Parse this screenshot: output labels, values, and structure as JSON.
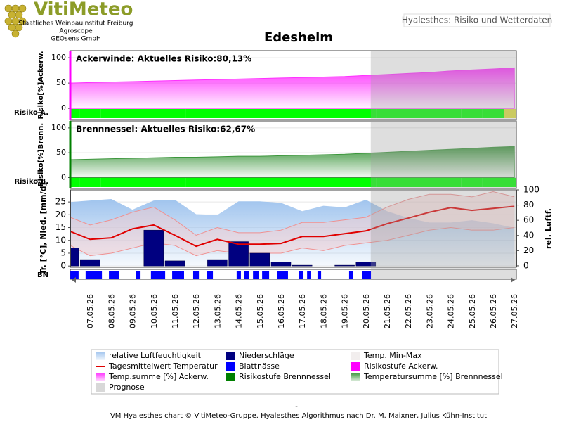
{
  "header": {
    "logo": "VitiMeteo",
    "lines": [
      "Staatliches Weinbauinstitut Freiburg",
      "Agroscope",
      "GEOsens GmbH"
    ],
    "tab": "Hyalesthes: Risiko und Wetterdaten",
    "title": "Edesheim"
  },
  "chart_data": [
    {
      "type": "area",
      "title": "Ackerwinde: Aktuelles Risiko:80,13%",
      "y_label": "Risiko[%]Ackerw.",
      "risk_label": "Risiko A.",
      "ylim": [
        -22,
        114
      ],
      "yticks": [
        0,
        50,
        100
      ],
      "axis_color": "#ff00ff",
      "color": "#ff30ff",
      "values": [
        50,
        51,
        52,
        53,
        54,
        55,
        56,
        57,
        58,
        59,
        60,
        61,
        62,
        63,
        65,
        67,
        69,
        71,
        74,
        76,
        78,
        80.13
      ],
      "risk_levels": [
        1,
        1,
        1,
        1,
        1,
        1,
        1,
        1,
        1,
        1,
        1,
        1,
        1,
        1,
        1,
        1,
        1,
        1,
        1,
        1,
        1,
        2
      ],
      "level_colors": [
        "#00ff00",
        "#e0e040"
      ],
      "grid": true
    },
    {
      "type": "area",
      "title": "Brennnessel: Aktuelles Risiko:62,67%",
      "y_label": "Risiko[%]Brenn.",
      "risk_label": "Risiko B.",
      "ylim": [
        -22,
        114
      ],
      "yticks": [
        0,
        50,
        100
      ],
      "axis_color": "#008000",
      "color": "#3c963c",
      "values": [
        36,
        37,
        38,
        39,
        40,
        41,
        41,
        42,
        43,
        43,
        44,
        45,
        46,
        47,
        49,
        51,
        53,
        55,
        57,
        59,
        61,
        62.67
      ],
      "risk_levels": [
        1,
        1,
        1,
        1,
        1,
        1,
        1,
        1,
        1,
        1,
        1,
        1,
        1,
        1,
        1,
        1,
        1,
        1,
        1,
        1,
        1,
        1
      ],
      "level_colors": [
        "#00ff00",
        "#e0e040"
      ],
      "grid": true
    },
    {
      "type": "weather",
      "y_label": "Tr. [°C], Nied. [mm/d]",
      "y2_label": "rel. Luftf.",
      "categories": [
        null,
        "07.05.26",
        "08.05.26",
        "09.05.26",
        "10.05.26",
        "11.05.26",
        "12.05.26",
        "13.05.26",
        "14.05.26",
        "15.05.26",
        "16.05.26",
        "17.05.26",
        "18.05.26",
        "19.05.26",
        "20.05.26",
        "21.05.26",
        "22.05.26",
        "23.05.26",
        "24.05.26",
        "25.05.26",
        "26.05.26",
        "27.05.26"
      ],
      "ylim": [
        -0.5,
        29.7
      ],
      "yticks": [
        0,
        5,
        10,
        15,
        20,
        25
      ],
      "y2lim": [
        -1.9,
        100
      ],
      "y2ticks": [
        0,
        20,
        40,
        60,
        80,
        100
      ],
      "forecast_start": 14,
      "forecast_color": "#a0a0a0",
      "grid": true,
      "humidity": {
        "axis": "y2",
        "color": "#a0c4ee",
        "values": [
          84,
          86,
          88,
          74,
          86,
          87,
          68,
          67,
          85,
          85,
          83,
          72,
          79,
          77,
          87,
          72,
          63,
          57,
          57,
          60,
          56,
          50
        ]
      },
      "precipitation": {
        "color": "#000080",
        "values": [
          7,
          2.5,
          0,
          0,
          14,
          2,
          0,
          2.5,
          9.5,
          5,
          1.5,
          0.3,
          0,
          0.3,
          1.5,
          0,
          0,
          0,
          0,
          0,
          0,
          0
        ]
      },
      "temp_range": {
        "color": "#f8caca",
        "edge": "#f09090",
        "low": [
          8,
          4,
          5,
          7,
          9,
          8,
          4,
          6,
          5,
          5,
          5,
          7,
          6,
          8,
          9,
          10,
          12,
          14,
          15,
          14,
          14,
          15
        ],
        "high": [
          19,
          16,
          18,
          21,
          23,
          18,
          12,
          15,
          13,
          13,
          14,
          17,
          17,
          18,
          19,
          23,
          26,
          28,
          28,
          27,
          29,
          27
        ]
      },
      "temperature": {
        "color": "#e00000",
        "values": [
          13.5,
          10.4,
          11,
          14.5,
          16,
          12,
          7.7,
          10.4,
          8.5,
          8.5,
          8.8,
          11.5,
          11.5,
          12.6,
          13.7,
          16.5,
          18.7,
          21,
          22.8,
          21.7,
          22.5,
          23.3
        ]
      },
      "leaf_wetness": {
        "label": "BN",
        "color": "#0000ff",
        "intervals": [
          [
            0.07,
            0.46
          ],
          [
            0.79,
            1.56
          ],
          [
            1.89,
            2.38
          ],
          [
            3.15,
            3.38
          ],
          [
            3.87,
            4.54
          ],
          [
            4.87,
            5.43
          ],
          [
            5.86,
            6.13
          ],
          [
            6.52,
            6.79
          ],
          [
            7.91,
            8.11
          ],
          [
            8.25,
            8.51
          ],
          [
            8.68,
            8.94
          ],
          [
            9.11,
            9.44
          ],
          [
            9.83,
            10.33
          ],
          [
            10.83,
            11.06
          ],
          [
            11.23,
            11.39
          ],
          [
            11.72,
            11.89
          ],
          [
            13.21,
            13.38
          ],
          [
            13.81,
            14.24
          ]
        ]
      }
    }
  ],
  "legend": [
    {
      "name": "relative Luftfeuchtigkeit",
      "color": "#a0c4ee",
      "kind": "gradient"
    },
    {
      "name": "Niederschläge",
      "color": "#000080",
      "kind": "fill"
    },
    {
      "name": "Temp. Min-Max",
      "color": "#f2eeee",
      "kind": "fill"
    },
    {
      "name": "Tagesmittelwert Temperatur",
      "color": "#e00000",
      "kind": "line"
    },
    {
      "name": "Blattnässe",
      "color": "#0000ff",
      "kind": "fill"
    },
    {
      "name": "Risikostufe Ackerw.",
      "color": "#ff00ff",
      "kind": "fill"
    },
    {
      "name": "Temp.summe [%] Ackerw.",
      "color": "#ff30ff",
      "kind": "gradient"
    },
    {
      "name": "Risikostufe Brennnessel",
      "color": "#008000",
      "kind": "fill"
    },
    {
      "name": "Temperatursumme [%] Brennnessel",
      "color": "#3c963c",
      "kind": "gradient"
    },
    {
      "name": "Prognose",
      "color": "#d8d8d8",
      "kind": "fill"
    }
  ],
  "footer": {
    "dash": "-",
    "text": "VM Hyalesthes chart © VitiMeteo-Gruppe. Hyalesthes Algorithmus nach Dr. M. Maixner, Julius Kühn-Institut"
  }
}
